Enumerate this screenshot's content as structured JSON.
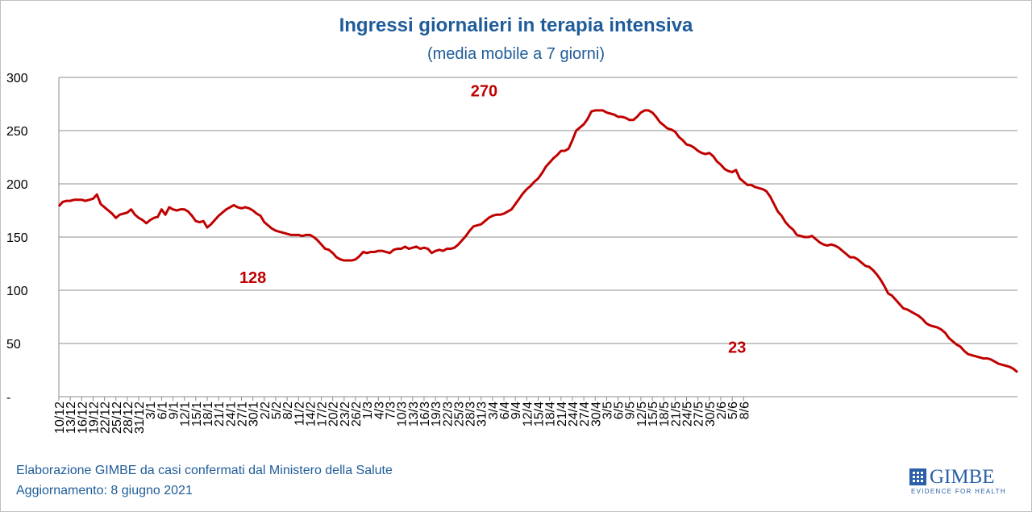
{
  "chart_data": {
    "type": "line",
    "title": "Ingressi giornalieri in terapia intensiva",
    "subtitle": "(media mobile a 7 giorni)",
    "ylim": [
      0,
      300
    ],
    "y_ticks": [
      0,
      50,
      100,
      150,
      200,
      250,
      300
    ],
    "y_tick_labels": [
      "-",
      "50",
      "100",
      "150",
      "200",
      "250",
      "300"
    ],
    "grid": true,
    "color": "#c00000",
    "x_tick_labels": [
      "10/12",
      "13/12",
      "16/12",
      "19/12",
      "22/12",
      "25/12",
      "28/12",
      "31/12",
      "3/1",
      "6/1",
      "9/1",
      "12/1",
      "15/1",
      "18/1",
      "21/1",
      "24/1",
      "27/1",
      "30/1",
      "2/2",
      "5/2",
      "8/2",
      "11/2",
      "14/2",
      "17/2",
      "20/2",
      "23/2",
      "26/2",
      "1/3",
      "4/3",
      "7/3",
      "10/3",
      "13/3",
      "16/3",
      "19/3",
      "22/3",
      "25/3",
      "28/3",
      "31/3",
      "3/4",
      "6/4",
      "9/4",
      "12/4",
      "15/4",
      "18/4",
      "21/4",
      "24/4",
      "27/4",
      "30/4",
      "3/5",
      "6/5",
      "9/5",
      "12/5",
      "15/5",
      "18/5",
      "21/5",
      "24/5",
      "27/5",
      "30/5",
      "2/6",
      "5/6",
      "8/6"
    ],
    "series": [
      {
        "x_start": "10/12",
        "values": [
          179,
          183,
          184,
          184,
          185,
          185,
          185,
          184,
          185,
          186,
          190,
          181,
          178,
          175,
          172,
          168,
          171,
          172,
          173,
          176,
          171,
          168,
          166,
          163,
          166,
          168,
          169,
          176,
          171,
          178,
          176,
          175,
          176,
          176,
          174,
          170,
          165,
          164,
          165,
          159,
          162,
          166,
          170,
          173,
          176,
          178,
          180,
          178,
          177,
          178,
          177,
          175,
          172,
          170,
          164,
          161,
          158,
          156,
          155,
          154,
          153,
          152,
          152,
          152,
          151,
          152,
          152,
          150,
          147,
          143,
          139,
          138,
          135,
          131,
          129,
          128,
          128,
          128,
          129,
          132,
          136,
          135,
          136,
          136,
          137,
          137,
          136,
          135,
          138,
          139,
          139,
          141,
          139,
          140,
          141,
          139,
          140,
          139,
          135,
          137,
          138,
          137,
          139,
          139,
          140,
          143,
          147,
          151,
          156,
          160,
          161,
          162,
          165,
          168,
          170,
          171,
          171,
          172,
          174,
          176,
          181,
          186,
          191,
          195,
          198,
          202,
          205,
          210,
          216,
          220,
          224,
          227,
          231,
          231,
          233,
          241,
          250,
          253,
          256,
          261,
          268,
          269,
          269,
          269,
          267,
          266,
          265,
          263,
          263,
          262,
          260,
          260,
          263,
          267,
          269,
          269,
          267,
          263,
          258,
          255,
          252,
          251,
          249,
          244,
          241,
          237,
          236,
          234,
          231,
          229,
          228,
          229,
          226,
          221,
          218,
          214,
          212,
          211,
          213,
          205,
          202,
          199,
          199,
          197,
          196,
          195,
          193,
          188,
          181,
          174,
          170,
          164,
          160,
          157,
          152,
          151,
          150,
          150,
          151,
          148,
          145,
          143,
          142,
          143,
          142,
          140,
          137,
          134,
          131,
          131,
          129,
          126,
          123,
          122,
          119,
          115,
          110,
          104,
          97,
          95,
          91,
          87,
          83,
          82,
          80,
          78,
          76,
          73,
          69,
          67,
          66,
          65,
          63,
          60,
          55,
          52,
          49,
          47,
          43,
          40,
          39,
          38,
          37,
          36,
          36,
          35,
          33,
          31,
          30,
          29,
          28,
          26,
          23
        ]
      }
    ],
    "annotations": [
      {
        "label": "128",
        "x": "30/1",
        "y": 128
      },
      {
        "label": "270",
        "x": "25/3",
        "y": 270
      },
      {
        "label": "23",
        "x": "8/6",
        "y": 23
      }
    ]
  },
  "footer": {
    "line1": "Elaborazione GIMBE da casi confermati dal Ministero della Salute",
    "line2": "Aggiornamento: 8 giugno 2021"
  },
  "logo": {
    "name": "GIMBE",
    "tagline": "EVIDENCE FOR HEALTH",
    "color": "#2a5fa8"
  }
}
